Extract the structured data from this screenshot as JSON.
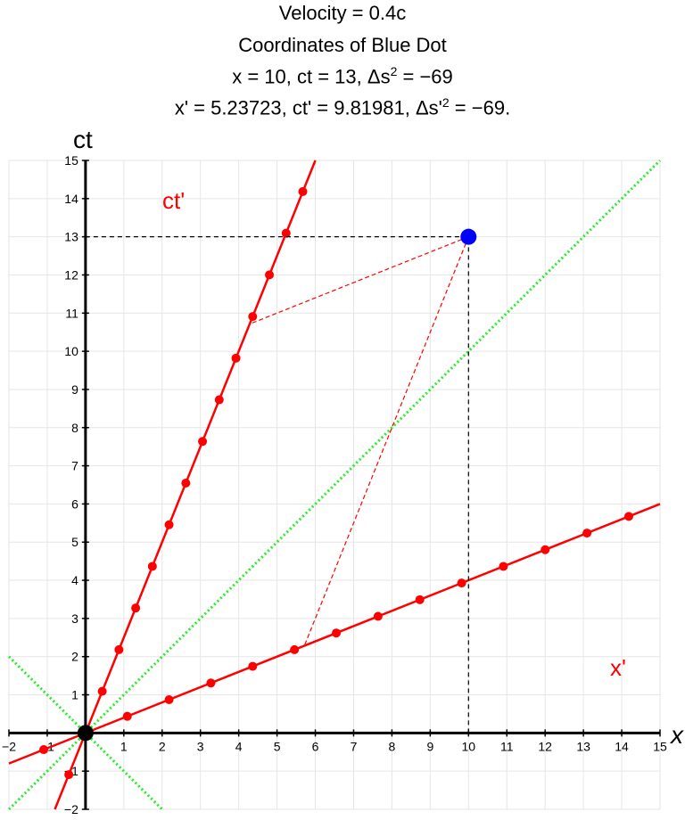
{
  "title_lines": {
    "velocity": "Velocity = 0.4c",
    "heading": "Coordinates of Blue Dot",
    "unprimed_pre": "x = 10, ct = 13, Δs",
    "unprimed_post": " = −69",
    "primed_pre": "x' = 5.23723, ct' = 9.81981, Δs'",
    "primed_post": " = −69.",
    "exp": "2"
  },
  "chart_data": {
    "type": "line",
    "xlabel": "x",
    "ylabel": "ct",
    "xlim": [
      -2,
      15
    ],
    "ylim": [
      -2,
      15
    ],
    "xticks": [
      -2,
      -1,
      1,
      2,
      3,
      4,
      5,
      6,
      7,
      8,
      9,
      10,
      11,
      12,
      13,
      14,
      15
    ],
    "yticks": [
      -2,
      -1,
      1,
      2,
      3,
      4,
      5,
      6,
      7,
      8,
      9,
      10,
      11,
      12,
      13,
      14,
      15
    ],
    "grid": true,
    "velocity": 0.4,
    "blue_dot": {
      "x": 10,
      "ct": 13,
      "x_prime": 5.23723,
      "ct_prime": 9.81981
    },
    "origin_dot": {
      "x": 0,
      "ct": 0
    },
    "primed_tick_range": [
      -1,
      13
    ],
    "axis_labels_primed": {
      "ct_prime": "ct'",
      "x_prime": "x'"
    },
    "colors": {
      "primed_axes": "#ff0000",
      "light_lines": "#22ee22",
      "blue_dot": "#0000ff",
      "axes": "#000000",
      "grid": "#e6e6e6"
    }
  }
}
